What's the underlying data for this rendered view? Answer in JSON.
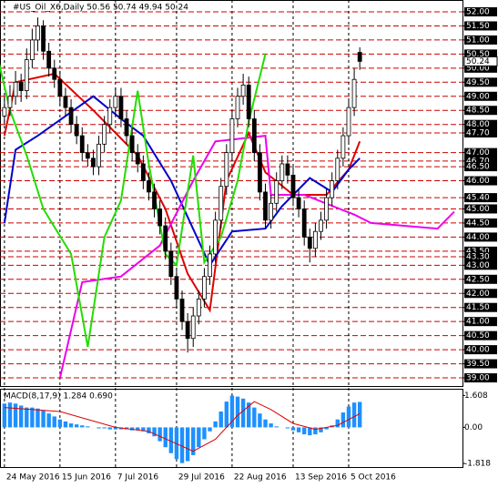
{
  "chart_data": {
    "type": "candlestick",
    "title": "#US_Oil_X6,Daily  50.56 50.74 49.94 50.24",
    "xlim": [
      -0.8,
      82.5
    ],
    "ylim": [
      38.71,
      52.42
    ],
    "open": [
      48.3,
      48.6,
      49.0,
      49.5,
      49.2,
      50.3,
      51.0,
      51.5,
      50.6,
      50.0,
      49.6,
      49.0,
      48.6,
      48.0,
      47.6,
      47.0,
      46.8,
      46.5,
      47.3,
      48.0,
      48.6,
      49.0,
      48.2,
      47.6,
      47.0,
      46.6,
      46.0,
      45.6,
      45.0,
      44.4,
      43.5,
      42.6,
      41.8,
      41.0,
      40.4,
      41.2,
      41.8,
      42.6,
      43.4,
      44.6,
      45.8,
      47.0,
      48.2,
      49.0,
      49.4,
      48.2,
      47.0,
      45.6,
      44.6,
      45.2,
      46.0,
      46.6,
      46.2,
      45.4,
      45.0,
      44.0,
      43.6,
      44.2,
      44.6,
      45.4,
      46.0,
      46.8,
      47.6,
      48.6,
      50.56
    ],
    "high": [
      49.0,
      49.4,
      49.9,
      49.8,
      50.7,
      51.4,
      51.8,
      51.7,
      50.9,
      50.3,
      49.9,
      49.3,
      48.9,
      48.3,
      47.9,
      47.3,
      47.1,
      47.6,
      48.3,
      48.9,
      49.3,
      49.3,
      48.5,
      47.9,
      47.3,
      46.9,
      46.3,
      45.9,
      45.3,
      44.7,
      43.8,
      42.9,
      42.1,
      41.3,
      41.5,
      42.1,
      42.9,
      43.7,
      44.9,
      46.1,
      47.3,
      48.5,
      49.3,
      49.8,
      49.7,
      48.5,
      47.3,
      45.9,
      45.5,
      46.3,
      46.9,
      46.9,
      46.5,
      45.7,
      45.3,
      44.3,
      44.5,
      44.9,
      45.7,
      46.3,
      47.1,
      47.9,
      48.9,
      50.0,
      50.74
    ],
    "low": [
      48.0,
      48.3,
      48.7,
      48.8,
      48.9,
      50.0,
      50.6,
      50.3,
      49.7,
      49.3,
      48.7,
      48.3,
      47.7,
      47.3,
      46.7,
      46.5,
      46.2,
      46.2,
      47.0,
      47.7,
      48.3,
      47.9,
      47.3,
      46.7,
      46.3,
      45.7,
      45.3,
      44.7,
      44.1,
      43.2,
      42.3,
      41.5,
      40.7,
      39.9,
      40.1,
      40.9,
      41.5,
      42.3,
      43.1,
      44.3,
      45.5,
      46.7,
      47.9,
      48.7,
      47.9,
      46.7,
      45.3,
      44.3,
      44.3,
      44.9,
      45.7,
      45.9,
      45.1,
      44.7,
      43.7,
      43.1,
      43.3,
      43.9,
      44.3,
      45.1,
      45.7,
      46.5,
      47.3,
      48.3,
      49.94
    ],
    "close": [
      48.6,
      49.0,
      49.5,
      49.2,
      50.3,
      51.0,
      51.5,
      50.6,
      50.0,
      49.6,
      49.0,
      48.6,
      48.0,
      47.6,
      47.0,
      46.8,
      46.5,
      47.3,
      48.0,
      48.6,
      49.0,
      48.2,
      47.6,
      47.0,
      46.6,
      46.0,
      45.6,
      45.0,
      44.4,
      43.5,
      42.6,
      41.8,
      41.0,
      40.4,
      41.2,
      41.8,
      42.6,
      43.4,
      44.6,
      45.8,
      47.0,
      48.2,
      49.0,
      49.4,
      48.2,
      47.0,
      45.6,
      44.6,
      45.2,
      46.0,
      46.6,
      46.2,
      45.4,
      45.0,
      44.0,
      43.6,
      44.2,
      44.6,
      45.4,
      46.0,
      46.8,
      47.6,
      48.6,
      49.6,
      50.24
    ],
    "candle_color": "#000000",
    "level_color": "#cc0000",
    "last_price": 50.24,
    "yticks": [
      {
        "value": 52,
        "label": "52.00"
      },
      {
        "value": 51.5,
        "label": "51.50"
      },
      {
        "value": 51,
        "label": "51.00"
      },
      {
        "value": 50.5,
        "label": "50.50"
      },
      {
        "value": 50,
        "label": "50.00"
      },
      {
        "value": 49.5,
        "label": "49.50"
      },
      {
        "value": 49,
        "label": "49.00"
      },
      {
        "value": 48.5,
        "label": "48.50"
      },
      {
        "value": 48,
        "label": "48.00"
      },
      {
        "value": 47.7,
        "label": "47.70"
      },
      {
        "value": 47,
        "label": "47.00"
      },
      {
        "value": 46.7,
        "label": "46.70"
      },
      {
        "value": 46.5,
        "label": "46.50"
      },
      {
        "value": 46,
        "label": "46.00"
      },
      {
        "value": 45.4,
        "label": "45.40"
      },
      {
        "value": 45,
        "label": "45.00"
      },
      {
        "value": 44.5,
        "label": "44.50"
      },
      {
        "value": 44,
        "label": "44.00"
      },
      {
        "value": 43.5,
        "label": "43.50"
      },
      {
        "value": 43.3,
        "label": "43.30"
      },
      {
        "value": 43,
        "label": "43.00"
      },
      {
        "value": 42.5,
        "label": "42.50"
      },
      {
        "value": 42,
        "label": "42.00"
      },
      {
        "value": 41.5,
        "label": "41.50"
      },
      {
        "value": 41,
        "label": "41.00"
      },
      {
        "value": 40.5,
        "label": "40.50"
      },
      {
        "value": 40,
        "label": "40.00"
      },
      {
        "value": 39.5,
        "label": "39.50"
      },
      {
        "value": 39,
        "label": "39.00"
      }
    ],
    "xticks": [
      {
        "value": 0,
        "label": "24 May 2016"
      },
      {
        "value": 10,
        "label": "15 Jun 2016"
      },
      {
        "value": 20,
        "label": "7 Jul 2016"
      },
      {
        "value": 31,
        "label": "29 Jul 2016"
      },
      {
        "value": 41,
        "label": "22 Aug 2016"
      },
      {
        "value": 52,
        "label": "13 Sep 2016"
      },
      {
        "value": 62,
        "label": "5 Oct 2016"
      }
    ],
    "lines": [
      {
        "color": "#dd0000",
        "x": [
          0,
          2,
          9,
          16,
          24,
          29,
          33,
          37,
          40,
          44,
          47,
          52,
          58,
          62,
          64
        ],
        "values": [
          47.6,
          49.5,
          49.8,
          48.5,
          46.9,
          45.0,
          42.7,
          41.4,
          46.0,
          47.7,
          46.3,
          45.5,
          45.5,
          46.4,
          47.4
        ]
      },
      {
        "color": "#0000cc",
        "x": [
          0,
          2,
          6,
          16,
          21,
          25,
          30,
          37,
          41,
          47,
          50,
          55,
          59,
          62,
          64
        ],
        "values": [
          44.5,
          47.1,
          47.6,
          49.0,
          48.2,
          47.6,
          46.0,
          43.0,
          44.2,
          44.3,
          45.1,
          46.1,
          45.6,
          46.4,
          46.8
        ]
      },
      {
        "color": "#ee00ee",
        "x": [
          10,
          14,
          21,
          28,
          34,
          38,
          47,
          48,
          54,
          63,
          66,
          78,
          81
        ],
        "values": [
          39.0,
          42.4,
          42.6,
          43.7,
          46.0,
          47.4,
          47.6,
          45.5,
          45.5,
          44.8,
          44.5,
          44.3,
          44.9
        ]
      },
      {
        "color": "#22dd00",
        "x": [
          -1,
          1,
          4,
          7,
          12,
          15,
          18,
          21,
          24,
          26,
          29,
          31,
          34,
          36,
          39,
          42,
          44,
          47
        ],
        "values": [
          50.2,
          48.5,
          46.9,
          45.0,
          43.4,
          40.1,
          44.0,
          45.3,
          49.2,
          46.6,
          43.4,
          43.0,
          46.9,
          43.1,
          44.0,
          46.0,
          48.1,
          50.5
        ]
      }
    ],
    "macd": {
      "title": "MACD(8,17,9) 1.284 0.690",
      "ylim": [
        -2.0,
        1.9
      ],
      "yticks": [
        1.608,
        {
          "value": 0,
          "label": "0.00"
        },
        -1.818
      ],
      "histogram": {
        "color": "#1e90ff",
        "values": [
          1.2,
          1.25,
          1.2,
          1.1,
          1.0,
          1.0,
          0.95,
          0.85,
          0.7,
          0.55,
          0.4,
          0.3,
          0.2,
          0.15,
          0.1,
          0.05,
          0.0,
          -0.05,
          -0.05,
          -0.1,
          -0.1,
          -0.1,
          -0.1,
          -0.15,
          -0.15,
          -0.2,
          -0.3,
          -0.45,
          -0.7,
          -1.0,
          -1.3,
          -1.6,
          -1.8,
          -1.7,
          -1.4,
          -1.0,
          -0.6,
          -0.2,
          0.3,
          0.8,
          1.3,
          1.6,
          1.55,
          1.45,
          1.25,
          1.0,
          0.7,
          0.4,
          0.2,
          0.05,
          0.0,
          -0.05,
          -0.15,
          -0.25,
          -0.35,
          -0.4,
          -0.35,
          -0.25,
          -0.1,
          0.1,
          0.4,
          0.75,
          1.05,
          1.25,
          1.284
        ]
      },
      "signal": {
        "color": "#dd0000",
        "x": [
          0,
          10,
          20,
          26,
          30,
          34,
          38,
          42,
          45,
          48,
          52,
          56,
          60,
          64
        ],
        "values": [
          1.0,
          0.8,
          0.0,
          -0.2,
          -0.7,
          -1.2,
          -0.6,
          0.6,
          1.3,
          0.9,
          0.2,
          -0.1,
          0.1,
          0.69
        ]
      }
    }
  }
}
